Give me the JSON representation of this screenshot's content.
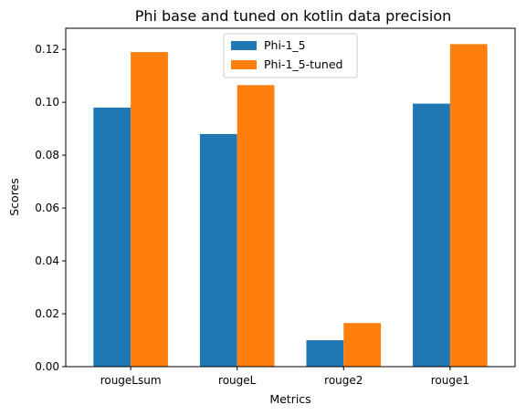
{
  "chart_data": {
    "type": "bar",
    "title": "Phi base and tuned on kotlin data precision",
    "xlabel": "Metrics",
    "ylabel": "Scores",
    "categories": [
      "rougeLsum",
      "rougeL",
      "rouge2",
      "rouge1"
    ],
    "series": [
      {
        "name": "Phi-1_5",
        "color": "#1f77b4",
        "values": [
          0.098,
          0.088,
          0.01,
          0.0995
        ]
      },
      {
        "name": "Phi-1_5-tuned",
        "color": "#ff7f0e",
        "values": [
          0.119,
          0.1065,
          0.0165,
          0.122
        ]
      }
    ],
    "ylim": [
      0,
      0.128
    ],
    "yticks": [
      "0.00",
      "0.02",
      "0.04",
      "0.06",
      "0.08",
      "0.10",
      "0.12"
    ],
    "grid": false,
    "legend_position": "top-center"
  }
}
